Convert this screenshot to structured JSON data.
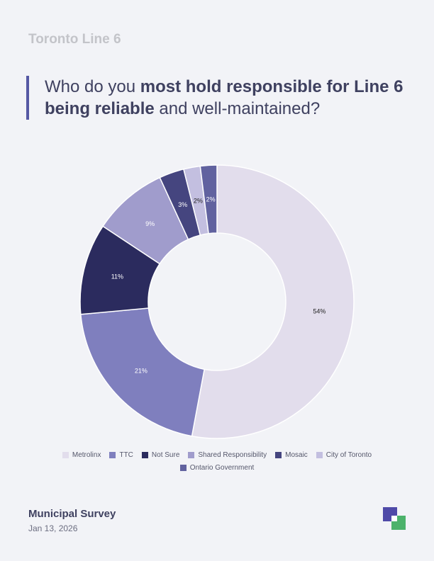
{
  "header": {
    "brand": "Toronto Line 6",
    "question_part1": "Who do you ",
    "question_bold1": "most hold responsible for Line 6",
    "question_bold2": "being reliable",
    "question_part2": " and well-maintained?"
  },
  "footer": {
    "title": "Municipal Survey",
    "date": "Jan 13, 2026"
  },
  "chart_data": {
    "type": "pie",
    "donut": true,
    "legend_position": "bottom",
    "categories": [
      "Metrolinx",
      "TTC",
      "Not Sure",
      "Shared Responsibility",
      "Mosaic",
      "City of Toronto",
      "Ontario Government"
    ],
    "values": [
      54,
      21,
      11,
      9,
      3,
      2,
      2
    ],
    "labels": [
      "54%",
      "21%",
      "11%",
      "9%",
      "3%",
      "2%",
      "2%"
    ],
    "colors": [
      "#e2ddec",
      "#7f7fbe",
      "#2b2b5e",
      "#a09ccc",
      "#45457f",
      "#c3bfe0",
      "#61629f"
    ],
    "label_colors": [
      "#222222",
      "#ffffff",
      "#ffffff",
      "#ffffff",
      "#ffffff",
      "#222222",
      "#ffffff"
    ]
  }
}
